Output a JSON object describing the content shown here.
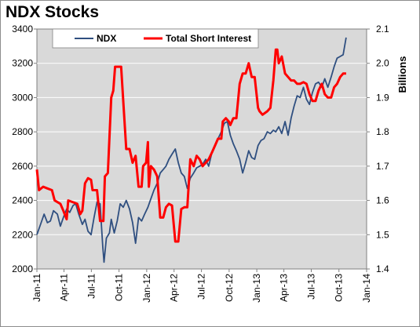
{
  "chart_data": {
    "type": "line",
    "title": "NDX Stocks",
    "y2label": "Billions",
    "grid": true,
    "legend_position": "top",
    "x_tick_labels": [
      "Jan-11",
      "Apr-11",
      "Jul-11",
      "Oct-11",
      "Jan-12",
      "Apr-12",
      "Jul-12",
      "Oct-12",
      "Jan-13",
      "Apr-13",
      "Jul-13",
      "Oct-13",
      "Jan-14"
    ],
    "y_ticks": [
      2000,
      2200,
      2400,
      2600,
      2800,
      3000,
      3200,
      3400
    ],
    "y2_ticks": [
      "1.4",
      "1.5",
      "1.6",
      "1.7",
      "1.8",
      "1.9",
      "2.0",
      "2.1"
    ],
    "ylim": [
      2000,
      3400
    ],
    "y2lim": [
      1.4,
      2.1
    ],
    "series": [
      {
        "name": "NDX",
        "axis": "left",
        "color": "#2f4f80",
        "points": [
          [
            "2011-01-01",
            2200
          ],
          [
            "2011-01-15",
            2270
          ],
          [
            "2011-01-25",
            2320
          ],
          [
            "2011-02-05",
            2270
          ],
          [
            "2011-02-15",
            2280
          ],
          [
            "2011-02-25",
            2340
          ],
          [
            "2011-03-10",
            2320
          ],
          [
            "2011-03-20",
            2250
          ],
          [
            "2011-03-30",
            2300
          ],
          [
            "2011-04-10",
            2350
          ],
          [
            "2011-04-20",
            2330
          ],
          [
            "2011-05-01",
            2370
          ],
          [
            "2011-05-10",
            2380
          ],
          [
            "2011-05-20",
            2320
          ],
          [
            "2011-06-01",
            2260
          ],
          [
            "2011-06-10",
            2290
          ],
          [
            "2011-06-20",
            2220
          ],
          [
            "2011-06-30",
            2200
          ],
          [
            "2011-07-10",
            2300
          ],
          [
            "2011-07-20",
            2390
          ],
          [
            "2011-07-30",
            2380
          ],
          [
            "2011-08-08",
            2130
          ],
          [
            "2011-08-12",
            2040
          ],
          [
            "2011-08-20",
            2180
          ],
          [
            "2011-08-30",
            2210
          ],
          [
            "2011-09-05",
            2290
          ],
          [
            "2011-09-15",
            2210
          ],
          [
            "2011-09-25",
            2280
          ],
          [
            "2011-10-05",
            2380
          ],
          [
            "2011-10-15",
            2360
          ],
          [
            "2011-10-25",
            2400
          ],
          [
            "2011-11-05",
            2350
          ],
          [
            "2011-11-15",
            2270
          ],
          [
            "2011-11-25",
            2150
          ],
          [
            "2011-12-05",
            2300
          ],
          [
            "2011-12-15",
            2280
          ],
          [
            "2011-12-25",
            2320
          ],
          [
            "2012-01-05",
            2360
          ],
          [
            "2012-01-15",
            2410
          ],
          [
            "2012-01-25",
            2460
          ],
          [
            "2012-02-05",
            2500
          ],
          [
            "2012-02-15",
            2560
          ],
          [
            "2012-02-25",
            2580
          ],
          [
            "2012-03-05",
            2600
          ],
          [
            "2012-03-15",
            2640
          ],
          [
            "2012-03-25",
            2670
          ],
          [
            "2012-04-05",
            2700
          ],
          [
            "2012-04-15",
            2620
          ],
          [
            "2012-04-25",
            2560
          ],
          [
            "2012-05-05",
            2540
          ],
          [
            "2012-05-15",
            2470
          ],
          [
            "2012-05-25",
            2530
          ],
          [
            "2012-06-05",
            2560
          ],
          [
            "2012-06-15",
            2590
          ],
          [
            "2012-06-25",
            2600
          ],
          [
            "2012-07-05",
            2610
          ],
          [
            "2012-07-15",
            2640
          ],
          [
            "2012-07-25",
            2600
          ],
          [
            "2012-08-05",
            2680
          ],
          [
            "2012-08-15",
            2720
          ],
          [
            "2012-08-25",
            2760
          ],
          [
            "2012-09-05",
            2800
          ],
          [
            "2012-09-15",
            2850
          ],
          [
            "2012-09-25",
            2860
          ],
          [
            "2012-10-05",
            2780
          ],
          [
            "2012-10-15",
            2730
          ],
          [
            "2012-10-25",
            2690
          ],
          [
            "2012-11-05",
            2640
          ],
          [
            "2012-11-15",
            2560
          ],
          [
            "2012-11-25",
            2620
          ],
          [
            "2012-12-05",
            2690
          ],
          [
            "2012-12-15",
            2650
          ],
          [
            "2012-12-25",
            2640
          ],
          [
            "2013-01-05",
            2720
          ],
          [
            "2013-01-15",
            2750
          ],
          [
            "2013-01-25",
            2760
          ],
          [
            "2013-02-05",
            2800
          ],
          [
            "2013-02-15",
            2790
          ],
          [
            "2013-02-25",
            2810
          ],
          [
            "2013-03-05",
            2800
          ],
          [
            "2013-03-15",
            2830
          ],
          [
            "2013-03-25",
            2790
          ],
          [
            "2013-04-05",
            2860
          ],
          [
            "2013-04-15",
            2780
          ],
          [
            "2013-04-25",
            2880
          ],
          [
            "2013-05-05",
            2950
          ],
          [
            "2013-05-15",
            3010
          ],
          [
            "2013-05-25",
            3000
          ],
          [
            "2013-06-05",
            3060
          ],
          [
            "2013-06-15",
            2990
          ],
          [
            "2013-06-25",
            2960
          ],
          [
            "2013-07-05",
            3030
          ],
          [
            "2013-07-15",
            3080
          ],
          [
            "2013-07-25",
            3090
          ],
          [
            "2013-08-05",
            3060
          ],
          [
            "2013-08-15",
            3110
          ],
          [
            "2013-08-25",
            3060
          ],
          [
            "2013-09-05",
            3120
          ],
          [
            "2013-09-15",
            3180
          ],
          [
            "2013-09-25",
            3230
          ],
          [
            "2013-10-05",
            3240
          ],
          [
            "2013-10-15",
            3250
          ],
          [
            "2013-10-25",
            3350
          ]
        ]
      },
      {
        "name": "Total Short Interest",
        "axis": "right",
        "color": "#ff0000",
        "points": [
          [
            "2011-01-01",
            1.69
          ],
          [
            "2011-01-08",
            1.63
          ],
          [
            "2011-01-22",
            1.64
          ],
          [
            "2011-02-05",
            1.635
          ],
          [
            "2011-02-20",
            1.63
          ],
          [
            "2011-03-01",
            1.6
          ],
          [
            "2011-03-20",
            1.59
          ],
          [
            "2011-03-30",
            1.57
          ],
          [
            "2011-04-10",
            1.545
          ],
          [
            "2011-04-15",
            1.6
          ],
          [
            "2011-05-15",
            1.59
          ],
          [
            "2011-05-25",
            1.56
          ],
          [
            "2011-06-01",
            1.57
          ],
          [
            "2011-06-10",
            1.65
          ],
          [
            "2011-06-20",
            1.665
          ],
          [
            "2011-06-30",
            1.66
          ],
          [
            "2011-07-05",
            1.63
          ],
          [
            "2011-07-20",
            1.63
          ],
          [
            "2011-07-30",
            1.54
          ],
          [
            "2011-08-10",
            1.54
          ],
          [
            "2011-08-15",
            1.67
          ],
          [
            "2011-08-25",
            1.68
          ],
          [
            "2011-09-05",
            1.9
          ],
          [
            "2011-09-12",
            1.92
          ],
          [
            "2011-09-18",
            1.99
          ],
          [
            "2011-10-08",
            1.99
          ],
          [
            "2011-10-15",
            1.89
          ],
          [
            "2011-10-25",
            1.75
          ],
          [
            "2011-11-05",
            1.75
          ],
          [
            "2011-11-15",
            1.71
          ],
          [
            "2011-11-25",
            1.73
          ],
          [
            "2011-12-05",
            1.64
          ],
          [
            "2011-12-15",
            1.64
          ],
          [
            "2011-12-20",
            1.7
          ],
          [
            "2011-12-30",
            1.71
          ],
          [
            "2012-01-05",
            1.77
          ],
          [
            "2012-01-08",
            1.64
          ],
          [
            "2012-01-15",
            1.7
          ],
          [
            "2012-01-25",
            1.69
          ],
          [
            "2012-02-05",
            1.67
          ],
          [
            "2012-02-15",
            1.55
          ],
          [
            "2012-02-25",
            1.55
          ],
          [
            "2012-03-05",
            1.58
          ],
          [
            "2012-03-15",
            1.59
          ],
          [
            "2012-03-25",
            1.585
          ],
          [
            "2012-04-05",
            1.48
          ],
          [
            "2012-04-15",
            1.48
          ],
          [
            "2012-04-25",
            1.575
          ],
          [
            "2012-05-05",
            1.58
          ],
          [
            "2012-05-15",
            1.58
          ],
          [
            "2012-05-25",
            1.72
          ],
          [
            "2012-06-05",
            1.7
          ],
          [
            "2012-06-15",
            1.73
          ],
          [
            "2012-06-25",
            1.72
          ],
          [
            "2012-07-05",
            1.7
          ],
          [
            "2012-07-15",
            1.71
          ],
          [
            "2012-07-25",
            1.72
          ],
          [
            "2012-08-05",
            1.74
          ],
          [
            "2012-08-15",
            1.76
          ],
          [
            "2012-08-25",
            1.78
          ],
          [
            "2012-09-05",
            1.78
          ],
          [
            "2012-09-10",
            1.83
          ],
          [
            "2012-09-20",
            1.84
          ],
          [
            "2012-09-30",
            1.83
          ],
          [
            "2012-10-05",
            1.82
          ],
          [
            "2012-10-15",
            1.84
          ],
          [
            "2012-10-25",
            1.84
          ],
          [
            "2012-11-05",
            1.94
          ],
          [
            "2012-11-15",
            1.97
          ],
          [
            "2012-11-25",
            1.97
          ],
          [
            "2012-12-05",
            2.0
          ],
          [
            "2012-12-15",
            1.96
          ],
          [
            "2012-12-25",
            1.96
          ],
          [
            "2013-01-05",
            1.87
          ],
          [
            "2013-01-10",
            1.86
          ],
          [
            "2013-01-20",
            1.85
          ],
          [
            "2013-02-05",
            1.86
          ],
          [
            "2013-02-15",
            1.87
          ],
          [
            "2013-02-25",
            1.95
          ],
          [
            "2013-03-05",
            2.04
          ],
          [
            "2013-03-10",
            2.04
          ],
          [
            "2013-03-15",
            2.0
          ],
          [
            "2013-03-25",
            2.02
          ],
          [
            "2013-04-05",
            1.97
          ],
          [
            "2013-04-15",
            1.96
          ],
          [
            "2013-04-25",
            1.95
          ],
          [
            "2013-05-05",
            1.95
          ],
          [
            "2013-05-15",
            1.94
          ],
          [
            "2013-05-25",
            1.94
          ],
          [
            "2013-06-05",
            1.945
          ],
          [
            "2013-06-15",
            1.94
          ],
          [
            "2013-06-25",
            1.91
          ],
          [
            "2013-07-05",
            1.89
          ],
          [
            "2013-07-15",
            1.89
          ],
          [
            "2013-07-25",
            1.92
          ],
          [
            "2013-08-05",
            1.94
          ],
          [
            "2013-08-15",
            1.91
          ],
          [
            "2013-08-25",
            1.9
          ],
          [
            "2013-09-05",
            1.9
          ],
          [
            "2013-09-15",
            1.93
          ],
          [
            "2013-09-25",
            1.94
          ],
          [
            "2013-10-05",
            1.96
          ],
          [
            "2013-10-15",
            1.97
          ],
          [
            "2013-10-25",
            1.97
          ]
        ]
      }
    ]
  }
}
